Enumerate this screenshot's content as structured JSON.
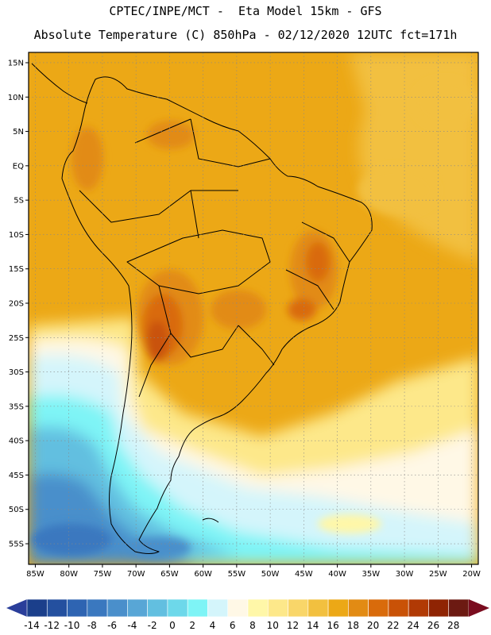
{
  "header": {
    "line1": "CPTEC/INPE/MCT -  Eta Model 15km - GFS",
    "line2": "Absolute Temperature (C) 850hPa - 02/12/2020 12UTC fct=171h"
  },
  "map": {
    "lon_range": [
      -86,
      -19
    ],
    "lat_range": [
      -58,
      16.5
    ],
    "lat_ticks": [
      "15N",
      "10N",
      "5N",
      "EQ",
      "5S",
      "10S",
      "15S",
      "20S",
      "25S",
      "30S",
      "35S",
      "40S",
      "45S",
      "50S",
      "55S"
    ],
    "lon_ticks": [
      "85W",
      "80W",
      "75W",
      "70W",
      "65W",
      "60W",
      "55W",
      "50W",
      "45W",
      "40W",
      "35W",
      "30W",
      "25W",
      "20W"
    ],
    "gridlines": "dotted"
  },
  "colorbar": {
    "labels": [
      "-14",
      "-12",
      "-10",
      "-8",
      "-6",
      "-4",
      "-2",
      "0",
      "2",
      "4",
      "6",
      "8",
      "10",
      "12",
      "14",
      "16",
      "18",
      "20",
      "22",
      "24",
      "26",
      "28"
    ],
    "colors": [
      "#1b3f8b",
      "#24509f",
      "#2e64b2",
      "#3a78bf",
      "#4a8fcb",
      "#58a6d6",
      "#62bfe0",
      "#6dd8ea",
      "#7ef4f6",
      "#d4f5fb",
      "#fff8e6",
      "#fff7a8",
      "#fde88a",
      "#f9d669",
      "#f2c03f",
      "#eca816",
      "#e28b14",
      "#d96b0b",
      "#c95207",
      "#b13a05",
      "#8f2403",
      "#6c1a12"
    ],
    "under_color": "#2a3e9a",
    "over_color": "#7a0c1f"
  }
}
